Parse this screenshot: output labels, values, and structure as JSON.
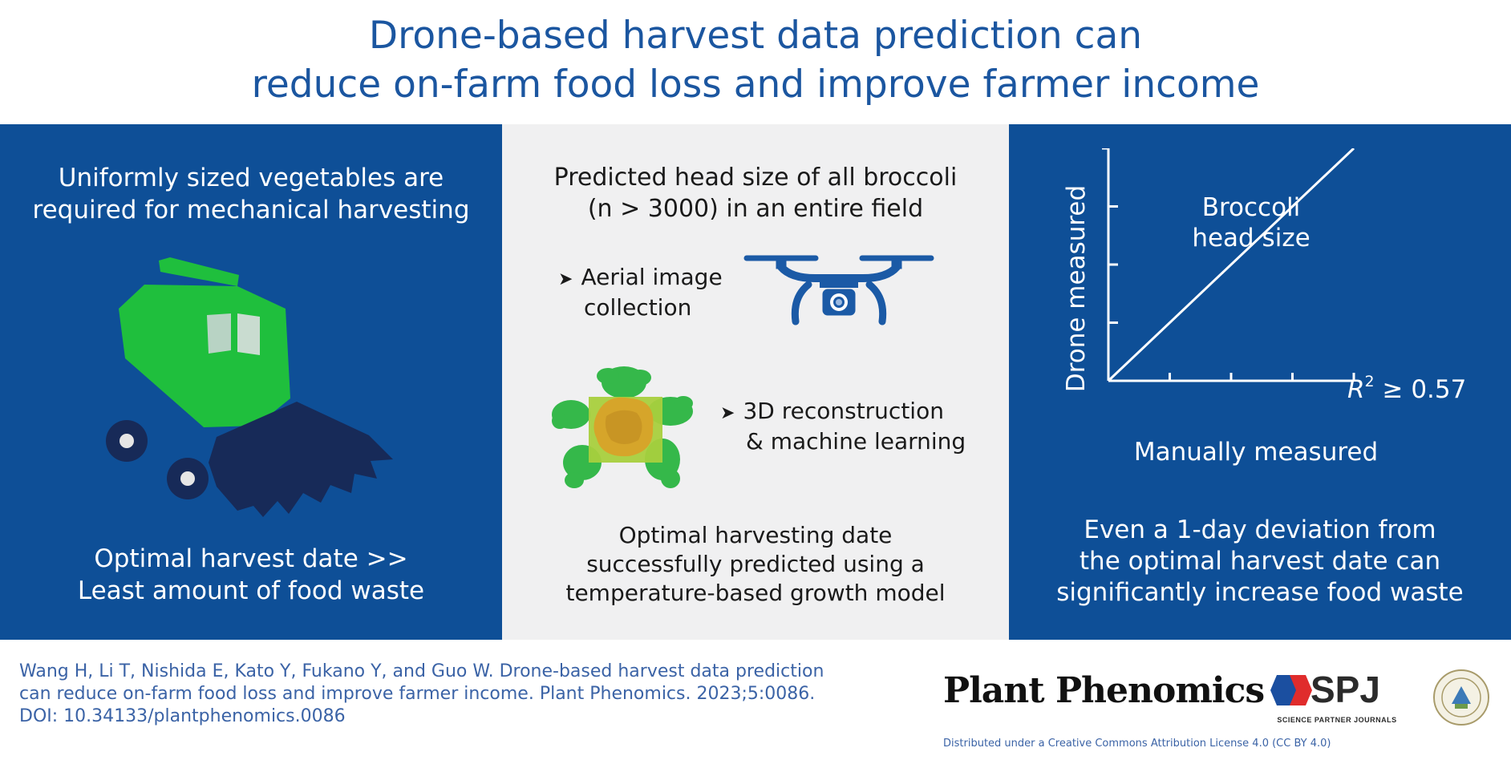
{
  "title": {
    "line1": "Drone-based harvest data prediction can",
    "line2": "reduce on-farm food loss and improve farmer income"
  },
  "left_panel": {
    "top_line1": "Uniformly sized vegetables are",
    "top_line2": "required for mechanical harvesting",
    "bottom_line1": "Optimal harvest date >>",
    "bottom_line2": "Least amount of food waste",
    "icon": "harvester-icon"
  },
  "middle_panel": {
    "top_line1": "Predicted head size of all broccoli",
    "top_line2": "(n > 3000) in an entire field",
    "bullet1_line1": "Aerial image",
    "bullet1_line2": "collection",
    "bullet2_line1": "3D reconstruction",
    "bullet2_line2": "& machine learning",
    "bullet_marker": "➤",
    "bottom_line1": "Optimal harvesting date",
    "bottom_line2": "successfully predicted using a",
    "bottom_line3": "temperature-based growth model",
    "icons": [
      "drone-icon",
      "broccoli-icon"
    ]
  },
  "right_panel": {
    "chart_data": {
      "type": "line",
      "x": [
        0,
        1
      ],
      "y": [
        0,
        1
      ],
      "title": "",
      "inner_label_line1": "Broccoli",
      "inner_label_line2": "head size",
      "xlabel": "Manually measured",
      "ylabel": "Drone measured",
      "annotation_r": "R",
      "annotation_sup": "2",
      "annotation_rest": " ≥ 0.57",
      "xlim": [
        0,
        1
      ],
      "ylim": [
        0,
        1
      ],
      "x_tick_count": 4,
      "y_tick_count": 4,
      "grid": false,
      "line_color": "#ffffff"
    },
    "bottom_line1": "Even a 1-day deviation from",
    "bottom_line2": "the optimal harvest date can",
    "bottom_line3": "significantly increase food waste"
  },
  "footer": {
    "citation_line1": "Wang H, Li T, Nishida E, Kato Y, Fukano Y, and Guo W. Drone-based harvest data prediction",
    "citation_line2": "can reduce on-farm food loss and improve farmer income. Plant Phenomics. 2023;5:0086.",
    "citation_line3": "DOI: 10.34133/plantphenomics.0086",
    "journal_name": "Plant Phenomics",
    "spj_label": "SPJ",
    "spj_subtitle": "SCIENCE PARTNER JOURNALS",
    "license": "Distributed under a Creative Commons Attribution License 4.0 (CC BY 4.0)",
    "logos": [
      "spj-logo-icon",
      "university-seal-icon"
    ]
  },
  "colors": {
    "panel_blue": "#0e4f97",
    "title_blue": "#1b56a0",
    "harvester_green": "#1fbf3d",
    "harvester_dark": "#172a58",
    "drone_blue": "#1b5aa6",
    "spj_blue": "#1b4fa0",
    "spj_red": "#e02c2c"
  }
}
